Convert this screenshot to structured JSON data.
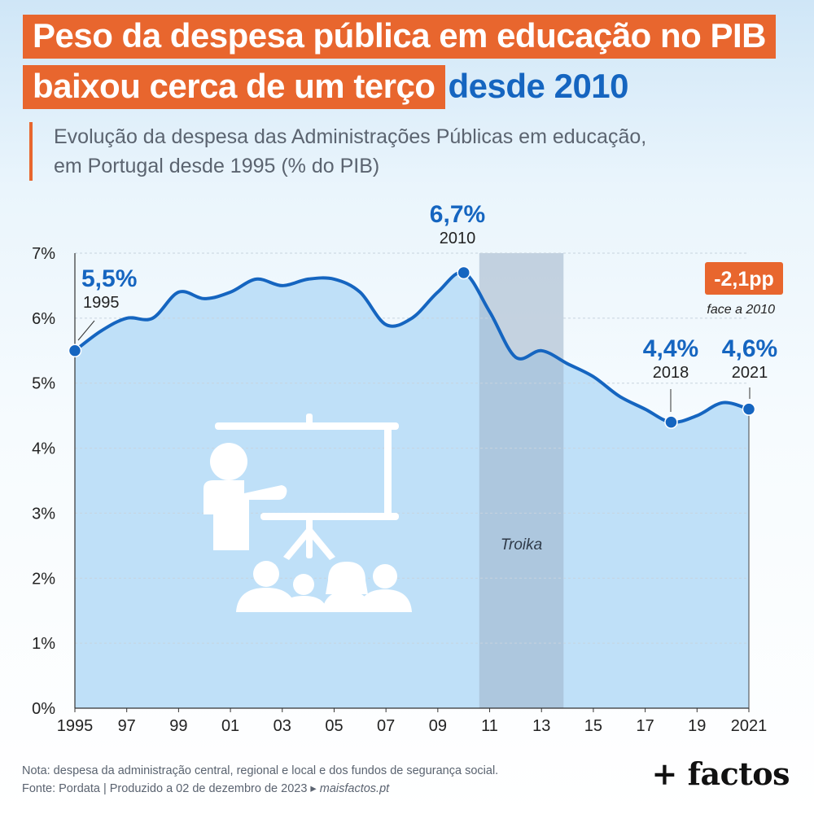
{
  "header": {
    "title_line1": "Peso da despesa pública em educação no PIB",
    "title_line2": "baixou cerca de um terço",
    "title_highlight": "desde 2010",
    "subtitle_line1": "Evolução da despesa das Administrações Públicas em educação,",
    "subtitle_line2": "em Portugal desde 1995 (% do PIB)"
  },
  "chart_data": {
    "type": "area",
    "x": [
      1995,
      1996,
      1997,
      1998,
      1999,
      2000,
      2001,
      2002,
      2003,
      2004,
      2005,
      2006,
      2007,
      2008,
      2009,
      2010,
      2011,
      2012,
      2013,
      2014,
      2015,
      2016,
      2017,
      2018,
      2019,
      2020,
      2021
    ],
    "values": [
      5.5,
      5.8,
      6.0,
      6.0,
      6.4,
      6.3,
      6.4,
      6.6,
      6.5,
      6.6,
      6.6,
      6.4,
      5.9,
      6.0,
      6.4,
      6.7,
      6.1,
      5.4,
      5.5,
      5.3,
      5.1,
      4.8,
      4.6,
      4.4,
      4.5,
      4.7,
      4.6
    ],
    "ylim": [
      0,
      7
    ],
    "y_ticks": [
      "0%",
      "1%",
      "2%",
      "3%",
      "4%",
      "5%",
      "6%",
      "7%"
    ],
    "x_ticks": [
      "1995",
      "97",
      "99",
      "01",
      "03",
      "05",
      "07",
      "09",
      "11",
      "13",
      "15",
      "17",
      "19",
      "2021"
    ],
    "grid": true,
    "shaded_period": {
      "start": 2010.6,
      "end": 2013.85,
      "label": "Troika"
    },
    "highlights": [
      {
        "year": 1995,
        "value_label": "5,5%",
        "year_label": "1995"
      },
      {
        "year": 2010,
        "value_label": "6,7%",
        "year_label": "2010"
      },
      {
        "year": 2018,
        "value_label": "4,4%",
        "year_label": "2018"
      },
      {
        "year": 2021,
        "value_label": "4,6%",
        "year_label": "2021"
      }
    ],
    "change_badge": {
      "value": "-2,1pp",
      "note": "face a 2010"
    }
  },
  "colors": {
    "line": "#1565c0",
    "area": "#bfe0f8",
    "shade": "#9eb3c9",
    "accent": "#e8662e",
    "point": "#1565c0"
  },
  "footer": {
    "note": "Nota: despesa da administração central, regional e local e dos fundos de segurança social.",
    "source": "Fonte: Pordata | Produzido a 02 de dezembro de 2023",
    "site": "maisfactos.pt",
    "brand": "+ factos"
  },
  "icons": [
    "teacher-presentation-icon"
  ]
}
